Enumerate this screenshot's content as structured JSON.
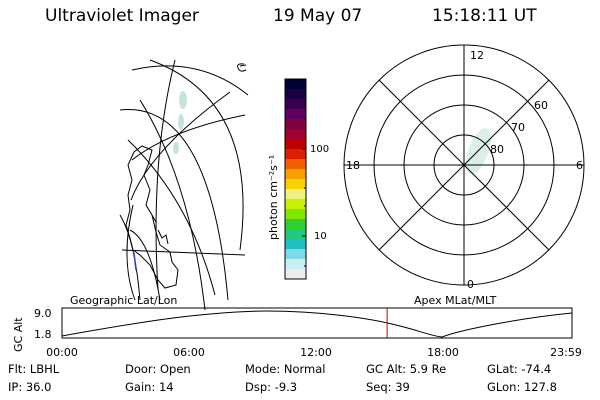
{
  "header": {
    "instrument": "Ultraviolet Imager",
    "date": "19 May 07",
    "time": "15:18:11 UT"
  },
  "geographic_map": {
    "label": "Geographic Lat/Lon"
  },
  "colorbar": {
    "unit_label": "photon cm⁻²s⁻¹",
    "tick_labels": [
      "100",
      "10"
    ],
    "colors": [
      "#000033",
      "#1a0040",
      "#3a0050",
      "#600060",
      "#800040",
      "#a00030",
      "#c00000",
      "#dd2000",
      "#ee6000",
      "#f5a000",
      "#f8d000",
      "#f0f080",
      "#c8f000",
      "#80e800",
      "#30d030",
      "#20c880",
      "#20c0c0",
      "#80d8e8",
      "#c8eef0",
      "#ececec"
    ]
  },
  "polar_plot": {
    "label": "Apex MLat/MLT",
    "mlt_labels": {
      "top": "12",
      "right": "6",
      "left": "18",
      "bottom": "0"
    },
    "mlat_labels": [
      "60",
      "70",
      "80"
    ]
  },
  "timeline": {
    "ylabel": "GC Alt",
    "ytick_top": "9.0",
    "ytick_bottom": "1.8",
    "xticks": [
      "00:00",
      "06:00",
      "12:00",
      "18:00",
      "23:59"
    ],
    "current_time_hours": 15.3
  },
  "info": {
    "row1": [
      {
        "label": "Flt:",
        "value": "LBHL"
      },
      {
        "label": "Door:",
        "value": "Open"
      },
      {
        "label": "Mode:",
        "value": "Normal"
      },
      {
        "label": "GC Alt:",
        "value": "5.9 Re"
      },
      {
        "label": "GLat:",
        "value": "-74.4"
      }
    ],
    "row2": [
      {
        "label": "IP:",
        "value": "36.0"
      },
      {
        "label": "Gain:",
        "value": "14"
      },
      {
        "label": "Dsp:",
        "value": "-9.3"
      },
      {
        "label": "Seq:",
        "value": "39"
      },
      {
        "label": "GLon:",
        "value": "127.8"
      }
    ]
  },
  "colors": {
    "cursor": "#cc0000",
    "line": "#000000",
    "aurora": "#b8dcd0"
  }
}
